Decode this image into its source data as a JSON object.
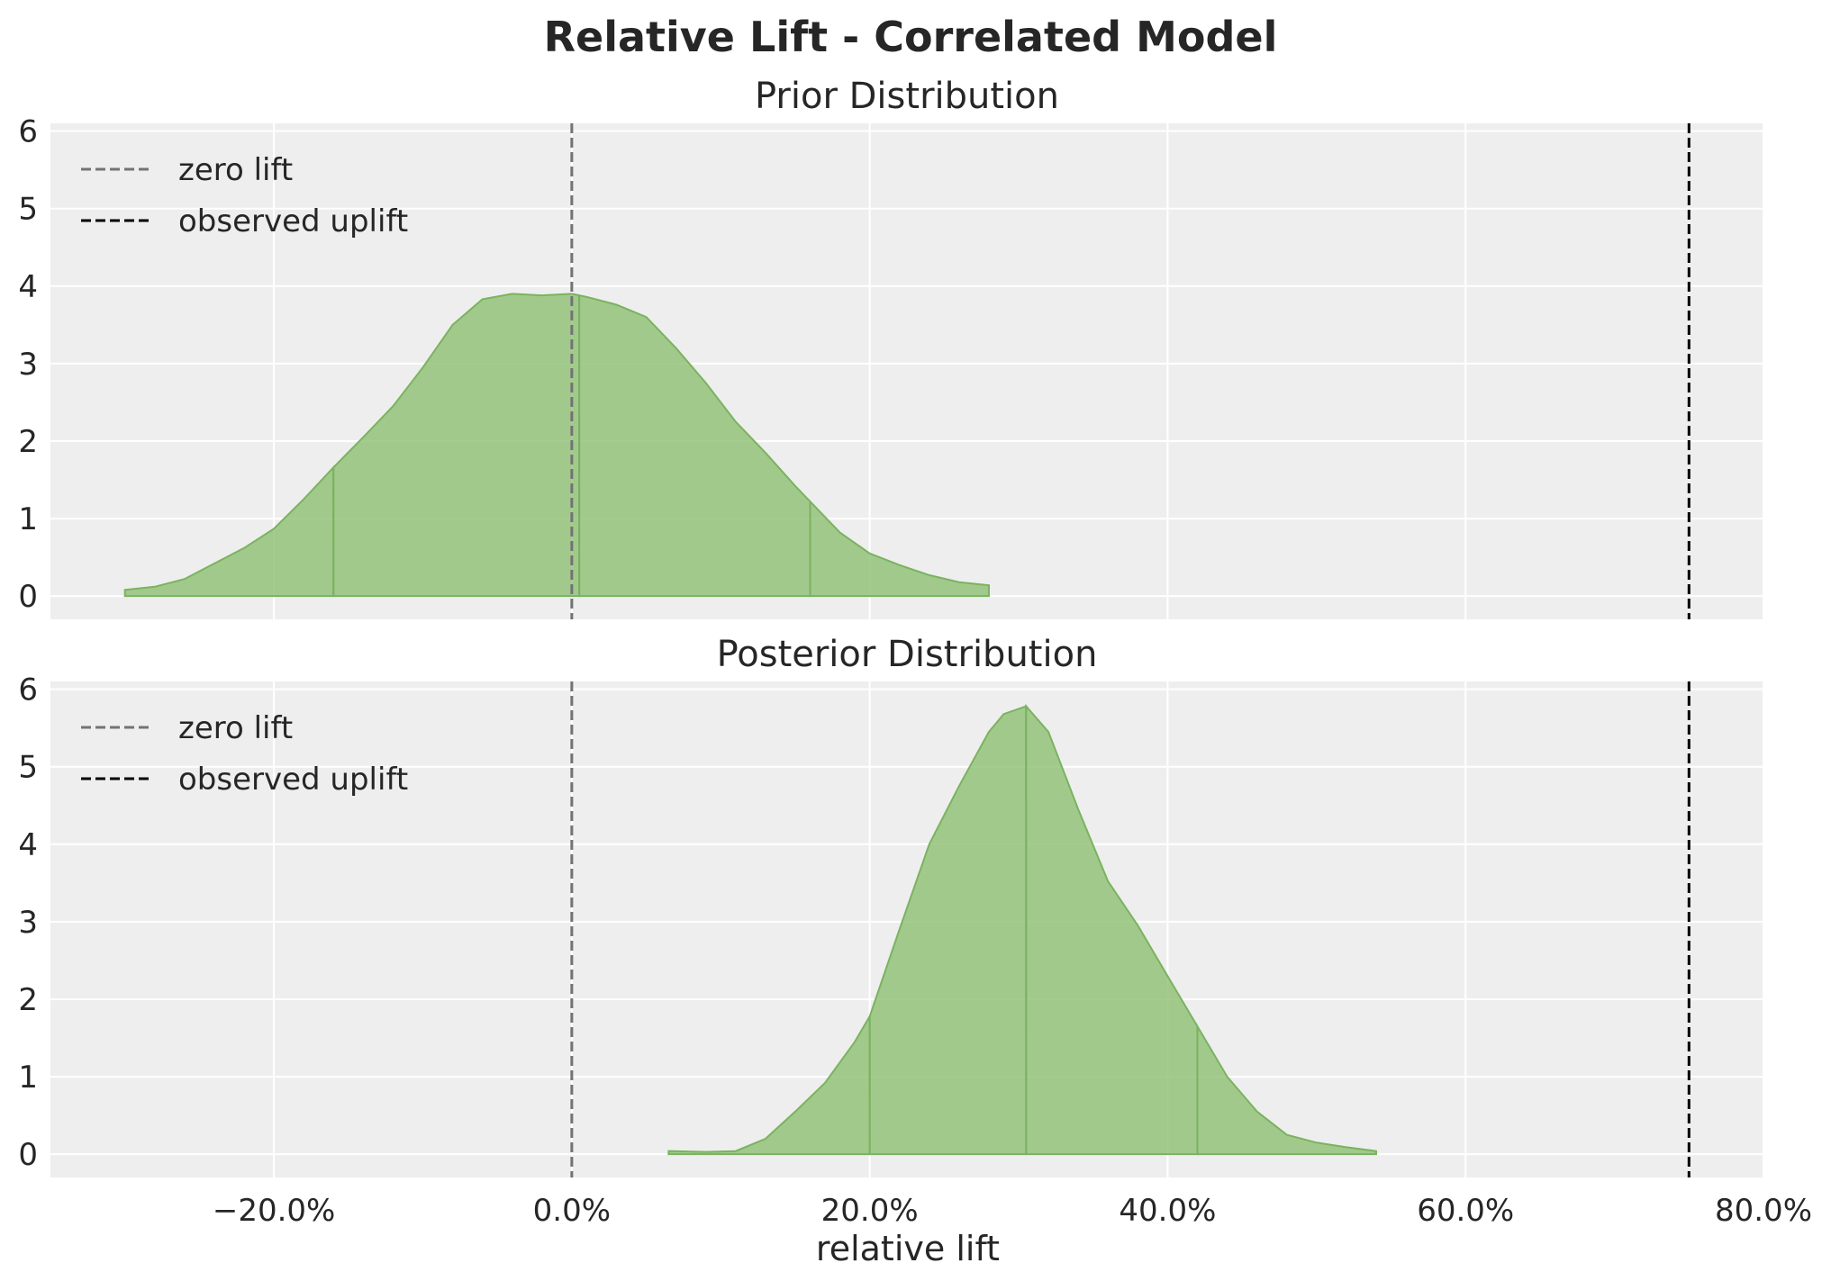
{
  "title": "Relative Lift - Correlated Model",
  "xlabel": "relative lift",
  "legend_labels": {
    "zero_lift": "zero lift",
    "observed_uplift": "observed uplift"
  },
  "colors": {
    "background": "#eeeeee",
    "fill": "#8fbf73",
    "zero_lift": "#737373",
    "observed_uplift": "#000000"
  },
  "chart_data": [
    {
      "type": "area",
      "title": "Prior Distribution",
      "xlim": [
        -0.35,
        0.8
      ],
      "ylim": [
        -0.3,
        6.1
      ],
      "xticks": [
        -0.2,
        0.0,
        0.2,
        0.4,
        0.6,
        0.8
      ],
      "xtick_labels": [
        "−20.0%",
        "0.0%",
        "20.0%",
        "40.0%",
        "60.0%",
        "80.0%"
      ],
      "yticks": [
        0,
        1,
        2,
        3,
        4,
        5,
        6
      ],
      "ytick_labels": [
        "0",
        "1",
        "2",
        "3",
        "4",
        "5",
        "6"
      ],
      "grid": true,
      "legend": "upper-left",
      "x": [
        -0.3,
        -0.28,
        -0.26,
        -0.24,
        -0.22,
        -0.2,
        -0.18,
        -0.16,
        -0.14,
        -0.12,
        -0.1,
        -0.08,
        -0.06,
        -0.04,
        -0.02,
        0.0,
        0.01,
        0.03,
        0.05,
        0.07,
        0.09,
        0.11,
        0.13,
        0.15,
        0.16,
        0.18,
        0.2,
        0.22,
        0.24,
        0.26,
        0.28
      ],
      "density": [
        0.08,
        0.12,
        0.22,
        0.42,
        0.62,
        0.87,
        1.25,
        1.66,
        2.05,
        2.45,
        2.95,
        3.5,
        3.83,
        3.9,
        3.88,
        3.9,
        3.86,
        3.76,
        3.6,
        3.2,
        2.75,
        2.25,
        1.85,
        1.42,
        1.22,
        0.82,
        0.55,
        0.4,
        0.27,
        0.18,
        0.14
      ],
      "segment_boundaries": [
        -0.16,
        0.005,
        0.16
      ],
      "zero_lift": 0.0,
      "observed_uplift": 0.75
    },
    {
      "type": "area",
      "title": "Posterior Distribution",
      "xlim": [
        -0.35,
        0.8
      ],
      "ylim": [
        -0.3,
        6.1
      ],
      "xticks": [
        -0.2,
        0.0,
        0.2,
        0.4,
        0.6,
        0.8
      ],
      "xtick_labels": [
        "−20.0%",
        "0.0%",
        "20.0%",
        "40.0%",
        "60.0%",
        "80.0%"
      ],
      "yticks": [
        0,
        1,
        2,
        3,
        4,
        5,
        6
      ],
      "ytick_labels": [
        "0",
        "1",
        "2",
        "3",
        "4",
        "5",
        "6"
      ],
      "grid": true,
      "legend": "upper-left",
      "x": [
        0.065,
        0.09,
        0.11,
        0.13,
        0.15,
        0.17,
        0.19,
        0.2,
        0.22,
        0.24,
        0.26,
        0.28,
        0.29,
        0.305,
        0.32,
        0.34,
        0.36,
        0.38,
        0.4,
        0.42,
        0.44,
        0.46,
        0.48,
        0.5,
        0.52,
        0.54
      ],
      "density": [
        0.04,
        0.03,
        0.04,
        0.2,
        0.55,
        0.92,
        1.45,
        1.78,
        2.9,
        4.0,
        4.75,
        5.45,
        5.68,
        5.78,
        5.45,
        4.45,
        3.52,
        2.95,
        2.3,
        1.65,
        1.0,
        0.55,
        0.25,
        0.15,
        0.09,
        0.04
      ],
      "segment_boundaries": [
        0.2,
        0.305,
        0.42
      ],
      "zero_lift": 0.0,
      "observed_uplift": 0.75
    }
  ]
}
